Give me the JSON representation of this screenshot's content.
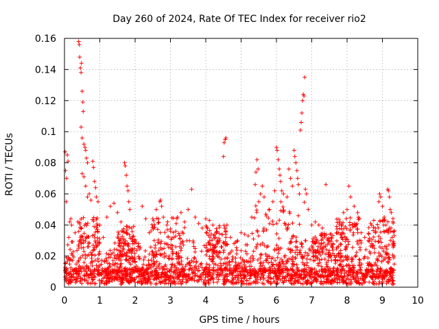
{
  "chart_data": {
    "type": "scatter",
    "title": "Day 260 of 2024, Rate Of TEC Index for receiver rio2",
    "xlabel": "GPS time / hours",
    "ylabel": "ROTI / TECUs",
    "xlim": [
      0,
      10
    ],
    "ylim": [
      0,
      0.16
    ],
    "xticks": [
      "0",
      "1",
      "2",
      "3",
      "4",
      "5",
      "6",
      "7",
      "8",
      "9",
      "10"
    ],
    "yticks": [
      "0",
      "0.02",
      "0.04",
      "0.06",
      "0.08",
      "0.1",
      "0.12",
      "0.14",
      "0.16"
    ],
    "grid": true,
    "marker": "+",
    "color": "#ff0000",
    "x_data_range": [
      0,
      9.35
    ],
    "series": [
      {
        "name": "ROTI",
        "points": [
          [
            0.02,
            0.087
          ],
          [
            0.03,
            0.075
          ],
          [
            0.05,
            0.055
          ],
          [
            0.06,
            0.07
          ],
          [
            0.08,
            0.085
          ],
          [
            0.1,
            0.081
          ],
          [
            0.12,
            0.032
          ],
          [
            0.15,
            0.042
          ],
          [
            0.18,
            0.044
          ],
          [
            0.2,
            0.04
          ],
          [
            0.3,
            0.035
          ],
          [
            0.38,
            0.042
          ],
          [
            0.4,
            0.158
          ],
          [
            0.42,
            0.156
          ],
          [
            0.43,
            0.148
          ],
          [
            0.45,
            0.141
          ],
          [
            0.47,
            0.138
          ],
          [
            0.48,
            0.144
          ],
          [
            0.5,
            0.126
          ],
          [
            0.52,
            0.119
          ],
          [
            0.53,
            0.113
          ],
          [
            0.47,
            0.103
          ],
          [
            0.5,
            0.096
          ],
          [
            0.55,
            0.092
          ],
          [
            0.58,
            0.09
          ],
          [
            0.6,
            0.088
          ],
          [
            0.62,
            0.083
          ],
          [
            0.65,
            0.08
          ],
          [
            0.5,
            0.073
          ],
          [
            0.55,
            0.071
          ],
          [
            0.6,
            0.065
          ],
          [
            0.65,
            0.058
          ],
          [
            0.7,
            0.06
          ],
          [
            0.75,
            0.056
          ],
          [
            0.8,
            0.081
          ],
          [
            0.82,
            0.077
          ],
          [
            0.85,
            0.068
          ],
          [
            0.88,
            0.064
          ],
          [
            0.9,
            0.058
          ],
          [
            0.95,
            0.055
          ],
          [
            1.0,
            0.04
          ],
          [
            1.1,
            0.032
          ],
          [
            1.2,
            0.045
          ],
          [
            1.3,
            0.052
          ],
          [
            1.4,
            0.054
          ],
          [
            1.5,
            0.048
          ],
          [
            1.6,
            0.042
          ],
          [
            1.7,
            0.08
          ],
          [
            1.72,
            0.078
          ],
          [
            1.75,
            0.072
          ],
          [
            1.77,
            0.065
          ],
          [
            1.8,
            0.062
          ],
          [
            1.82,
            0.055
          ],
          [
            1.85,
            0.05
          ],
          [
            1.9,
            0.038
          ],
          [
            2.0,
            0.03
          ],
          [
            2.1,
            0.028
          ],
          [
            2.2,
            0.052
          ],
          [
            2.3,
            0.044
          ],
          [
            2.4,
            0.035
          ],
          [
            2.5,
            0.044
          ],
          [
            2.6,
            0.05
          ],
          [
            2.7,
            0.055
          ],
          [
            2.72,
            0.056
          ],
          [
            2.75,
            0.052
          ],
          [
            2.8,
            0.045
          ],
          [
            2.9,
            0.04
          ],
          [
            3.0,
            0.036
          ],
          [
            3.1,
            0.032
          ],
          [
            3.2,
            0.045
          ],
          [
            3.3,
            0.048
          ],
          [
            3.4,
            0.042
          ],
          [
            3.5,
            0.05
          ],
          [
            3.6,
            0.063
          ],
          [
            3.7,
            0.045
          ],
          [
            3.8,
            0.041
          ],
          [
            3.9,
            0.038
          ],
          [
            4.0,
            0.044
          ],
          [
            4.1,
            0.043
          ],
          [
            4.2,
            0.04
          ],
          [
            4.3,
            0.035
          ],
          [
            4.4,
            0.03
          ],
          [
            4.5,
            0.084
          ],
          [
            4.52,
            0.093
          ],
          [
            4.55,
            0.095
          ],
          [
            4.57,
            0.096
          ],
          [
            4.6,
            0.04
          ],
          [
            4.7,
            0.032
          ],
          [
            4.8,
            0.028
          ],
          [
            4.9,
            0.03
          ],
          [
            5.0,
            0.035
          ],
          [
            5.1,
            0.034
          ],
          [
            5.2,
            0.033
          ],
          [
            5.3,
            0.045
          ],
          [
            5.4,
            0.066
          ],
          [
            5.42,
            0.074
          ],
          [
            5.45,
            0.082
          ],
          [
            5.48,
            0.076
          ],
          [
            5.5,
            0.055
          ],
          [
            5.55,
            0.06
          ],
          [
            5.6,
            0.065
          ],
          [
            5.65,
            0.058
          ],
          [
            5.7,
            0.047
          ],
          [
            5.8,
            0.05
          ],
          [
            5.9,
            0.055
          ],
          [
            5.95,
            0.062
          ],
          [
            6.0,
            0.09
          ],
          [
            6.02,
            0.088
          ],
          [
            6.05,
            0.082
          ],
          [
            6.08,
            0.076
          ],
          [
            6.1,
            0.072
          ],
          [
            6.12,
            0.068
          ],
          [
            6.15,
            0.062
          ],
          [
            6.2,
            0.06
          ],
          [
            6.3,
            0.058
          ],
          [
            6.35,
            0.076
          ],
          [
            6.4,
            0.07
          ],
          [
            6.45,
            0.065
          ],
          [
            6.5,
            0.088
          ],
          [
            6.52,
            0.084
          ],
          [
            6.55,
            0.08
          ],
          [
            6.58,
            0.075
          ],
          [
            6.6,
            0.07
          ],
          [
            6.62,
            0.066
          ],
          [
            6.65,
            0.06
          ],
          [
            6.68,
            0.101
          ],
          [
            6.7,
            0.106
          ],
          [
            6.72,
            0.112
          ],
          [
            6.74,
            0.12
          ],
          [
            6.76,
            0.124
          ],
          [
            6.78,
            0.123
          ],
          [
            6.8,
            0.135
          ],
          [
            6.82,
            0.063
          ],
          [
            6.85,
            0.06
          ],
          [
            6.9,
            0.05
          ],
          [
            7.0,
            0.04
          ],
          [
            7.1,
            0.042
          ],
          [
            7.2,
            0.04
          ],
          [
            7.3,
            0.038
          ],
          [
            7.4,
            0.066
          ],
          [
            7.5,
            0.03
          ],
          [
            7.6,
            0.028
          ],
          [
            7.7,
            0.035
          ],
          [
            7.8,
            0.042
          ],
          [
            7.9,
            0.048
          ],
          [
            8.0,
            0.05
          ],
          [
            8.05,
            0.065
          ],
          [
            8.1,
            0.058
          ],
          [
            8.2,
            0.052
          ],
          [
            8.3,
            0.048
          ],
          [
            8.4,
            0.035
          ],
          [
            8.5,
            0.032
          ],
          [
            8.6,
            0.03
          ],
          [
            8.7,
            0.028
          ],
          [
            8.8,
            0.035
          ],
          [
            8.9,
            0.055
          ],
          [
            8.92,
            0.06
          ],
          [
            8.95,
            0.058
          ],
          [
            9.0,
            0.052
          ],
          [
            9.05,
            0.045
          ],
          [
            9.1,
            0.04
          ],
          [
            9.15,
            0.063
          ],
          [
            9.17,
            0.062
          ],
          [
            9.2,
            0.058
          ],
          [
            9.22,
            0.05
          ],
          [
            9.25,
            0.048
          ],
          [
            9.3,
            0.042
          ],
          [
            9.33,
            0.036
          ]
        ],
        "dense_band": {
          "description": "continuous dense band of points",
          "x_range": [
            0,
            9.35
          ],
          "y_range": [
            0.002,
            0.03
          ],
          "typical_max": 0.02
        }
      }
    ]
  }
}
